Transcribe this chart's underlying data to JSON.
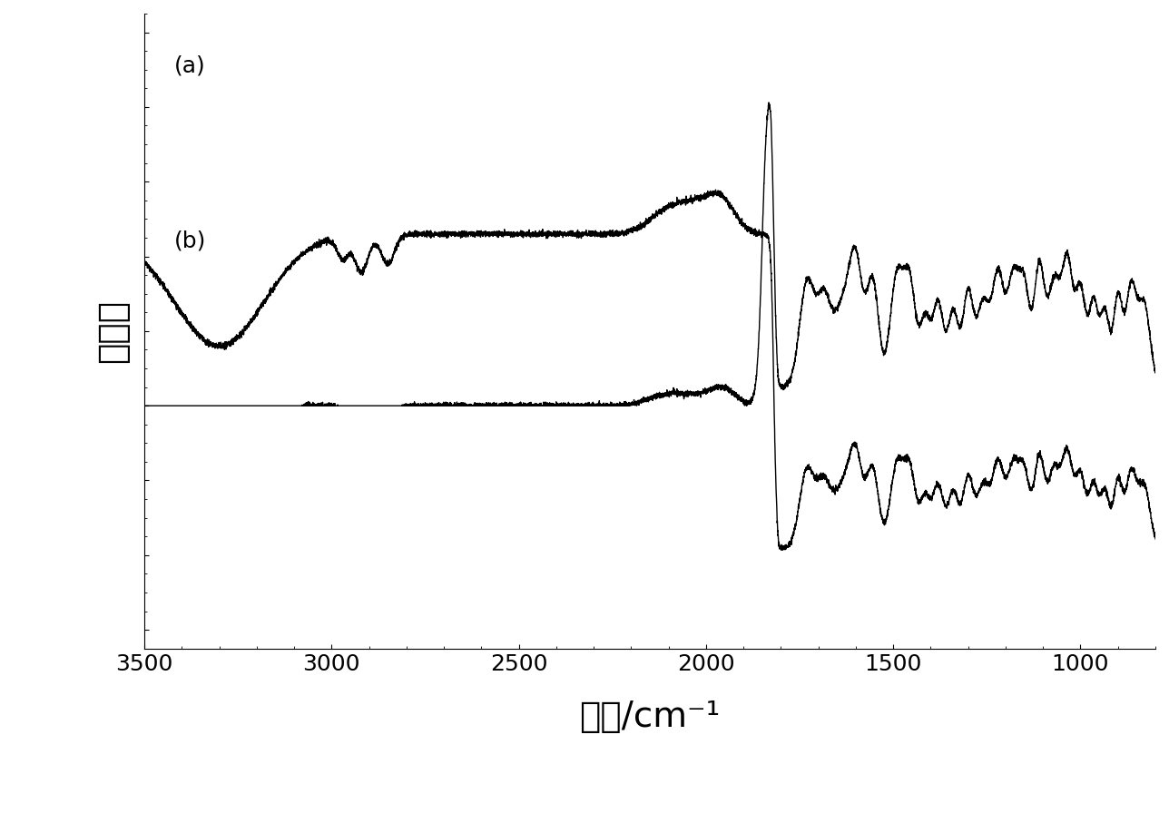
{
  "title": "",
  "xlabel": "波长/cm⁻¹",
  "ylabel": "透光率",
  "xlabel_fontsize": 28,
  "ylabel_fontsize": 28,
  "tick_fontsize": 18,
  "xlim": [
    3500,
    800
  ],
  "xticks": [
    3500,
    3000,
    2500,
    2000,
    1500,
    1000
  ],
  "background_color": "#ffffff",
  "line_color": "#000000",
  "label_a": "(a)",
  "label_b": "(b)",
  "label_fontsize": 18,
  "linewidth": 1.0
}
